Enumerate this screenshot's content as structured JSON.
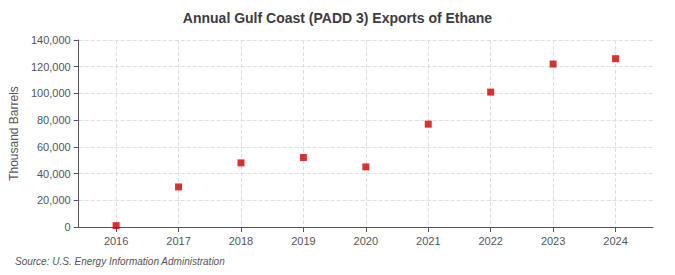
{
  "chart_data": {
    "type": "scatter",
    "title": "Annual Gulf Coast (PADD 3) Exports of Ethane",
    "ylabel": "Thousand Barrels",
    "source": "Source: U.S. Energy Information Administration",
    "x": [
      2016,
      2017,
      2018,
      2019,
      2020,
      2021,
      2022,
      2023,
      2024
    ],
    "values": [
      1000,
      30000,
      48000,
      52000,
      45000,
      77000,
      101000,
      122000,
      126000
    ],
    "color": "#cc0000",
    "marker": "square",
    "xlim": [
      2015.4,
      2024.6
    ],
    "xticks": [
      2016,
      2017,
      2018,
      2019,
      2020,
      2021,
      2022,
      2023,
      2024
    ],
    "ylim": [
      0,
      140000
    ],
    "yticks": [
      0,
      {
        "value": 20000,
        "label": "20,000"
      },
      {
        "value": 40000,
        "label": "40,000"
      },
      {
        "value": 60000,
        "label": "60,000"
      },
      {
        "value": 80000,
        "label": "80,000"
      },
      {
        "value": 100000,
        "label": "100,000"
      },
      {
        "value": 120000,
        "label": "120,000"
      },
      {
        "value": 140000,
        "label": "140,000"
      }
    ],
    "grid": true
  }
}
